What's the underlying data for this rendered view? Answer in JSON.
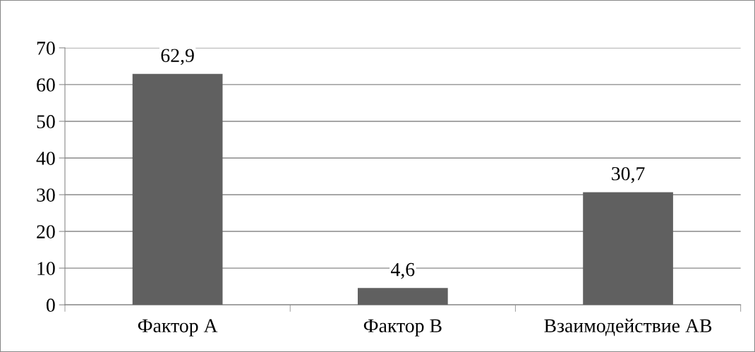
{
  "chart_data": {
    "type": "bar",
    "categories": [
      "Фактор А",
      "Фактор В",
      "Взаимодействие АВ"
    ],
    "values": [
      62.9,
      4.6,
      30.7
    ],
    "value_labels": [
      "62,9",
      "4,6",
      "30,7"
    ],
    "color": "#606060",
    "ylim": [
      0,
      70
    ],
    "yticks": [
      0,
      10,
      20,
      30,
      40,
      50,
      60,
      70
    ],
    "grid": "y",
    "legend": false
  }
}
